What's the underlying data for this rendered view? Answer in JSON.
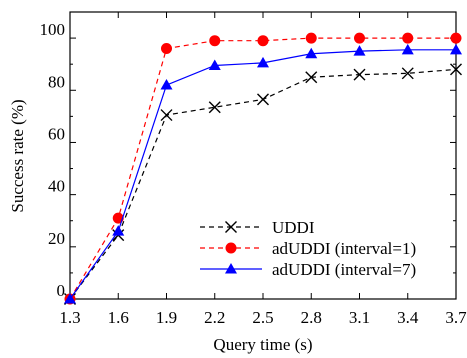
{
  "chart_data": {
    "type": "line",
    "xlabel": "Query time (s)",
    "ylabel": "Success rate (%)",
    "x": [
      1.3,
      1.6,
      1.9,
      2.2,
      2.5,
      2.8,
      3.1,
      3.4,
      3.7
    ],
    "x_tick_labels": [
      "1.3",
      "1.6",
      "1.9",
      "2.2",
      "2.5",
      "2.8",
      "3.1",
      "3.4",
      "3.7"
    ],
    "y_tick_labels": [
      "0",
      "20",
      "40",
      "60",
      "80",
      "100"
    ],
    "xlim": [
      1.3,
      3.7
    ],
    "ylim": [
      0,
      110
    ],
    "grid": false,
    "legend_position": "bottom-right",
    "series": [
      {
        "name": "UDDI",
        "color": "#000000",
        "line_style": "dashed",
        "marker": "x",
        "values": [
          0,
          24.5,
          70.5,
          73.5,
          76.5,
          85,
          86,
          86.5,
          88
        ]
      },
      {
        "name": "adUDDI (interval=1)",
        "color": "#ff0000",
        "line_style": "dashed",
        "marker": "circle",
        "values": [
          0,
          31,
          96,
          99,
          99,
          100,
          100,
          100,
          100
        ]
      },
      {
        "name": "adUDDI (interval=7)",
        "color": "#0000ff",
        "line_style": "solid",
        "marker": "triangle",
        "values": [
          0,
          26,
          82,
          89.5,
          90.5,
          94,
          95,
          95.5,
          95.5
        ]
      }
    ]
  }
}
